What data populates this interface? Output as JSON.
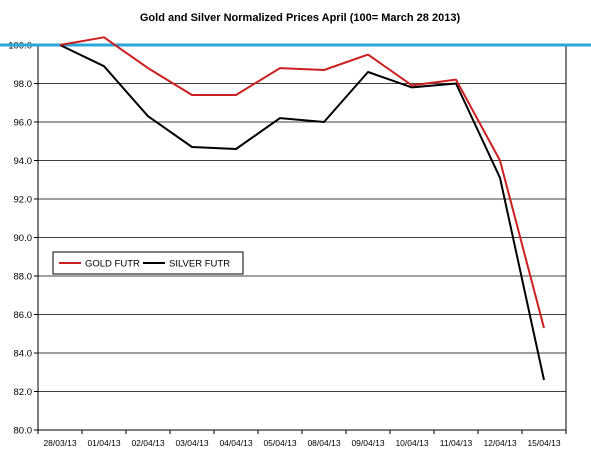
{
  "chart_data": {
    "type": "line",
    "title": "Gold and Silver Normalized Prices  April (100= March 28 2013)",
    "xlabel": "",
    "ylabel": "",
    "categories": [
      "28/03/13",
      "01/04/13",
      "02/04/13",
      "03/04/13",
      "04/04/13",
      "05/04/13",
      "08/04/13",
      "09/04/13",
      "10/04/13",
      "11/04/13",
      "12/04/13",
      "15/04/13"
    ],
    "ylim": [
      80,
      100
    ],
    "yticks": [
      80.0,
      82.0,
      84.0,
      86.0,
      88.0,
      90.0,
      92.0,
      94.0,
      96.0,
      98.0,
      100.0
    ],
    "ytick_labels": [
      "80.0",
      "82.0",
      "84.0",
      "86.0",
      "88.0",
      "90.0",
      "92.0",
      "94.0",
      "96.0",
      "98.0",
      "100.0"
    ],
    "grid": true,
    "legend_position": "left-middle",
    "reference_line": {
      "value": 100,
      "color": "#2aa6d8"
    },
    "series": [
      {
        "name": "GOLD  FUTR",
        "color": "#cc1f1f",
        "values": [
          100.0,
          100.4,
          98.8,
          97.4,
          97.4,
          98.8,
          98.7,
          99.5,
          97.9,
          98.2,
          94.0,
          85.3
        ]
      },
      {
        "name": "SILVER  FUTR",
        "color": "#000000",
        "values": [
          100.0,
          98.9,
          96.3,
          94.7,
          94.6,
          96.2,
          96.0,
          98.6,
          97.8,
          98.0,
          93.1,
          82.6
        ]
      }
    ]
  }
}
